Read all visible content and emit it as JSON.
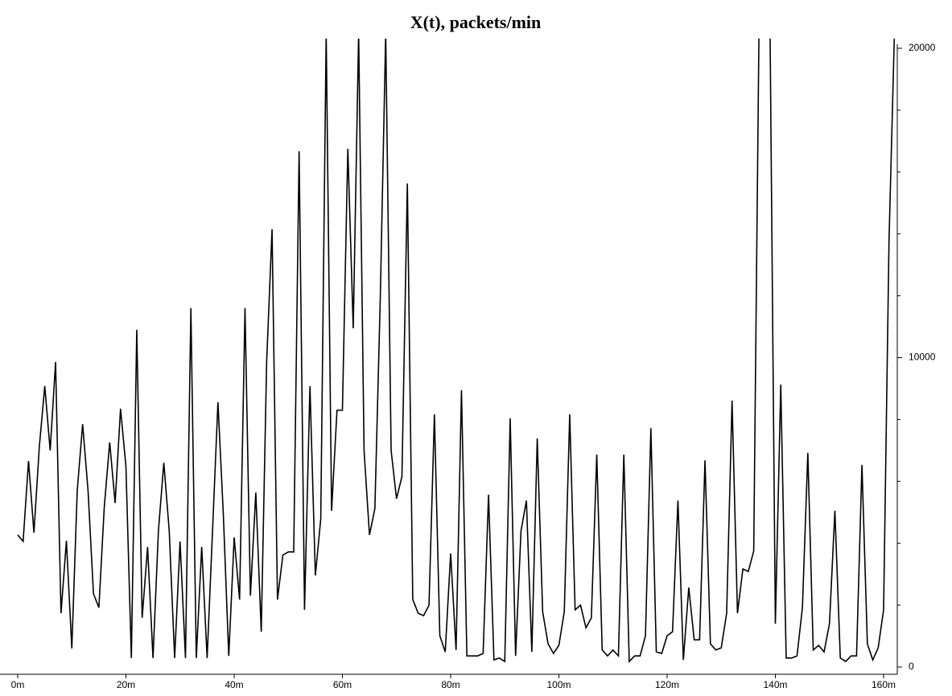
{
  "chart_data": {
    "type": "line",
    "title": "X(t), packets/min",
    "x": [
      0,
      1,
      2,
      3,
      4,
      5,
      6,
      7,
      8,
      9,
      10,
      11,
      12,
      13,
      14,
      15,
      16,
      17,
      18,
      19,
      20,
      21,
      22,
      23,
      24,
      25,
      26,
      27,
      28,
      29,
      30,
      31,
      32,
      33,
      34,
      35,
      36,
      37,
      38,
      39,
      40,
      41,
      42,
      43,
      44,
      45,
      46,
      47,
      48,
      49,
      50,
      51,
      52,
      53,
      54,
      55,
      56,
      57,
      58,
      59,
      60,
      61,
      62,
      63,
      64,
      65,
      66,
      67,
      68,
      69,
      70,
      71,
      72,
      73,
      74,
      75,
      76,
      77,
      78,
      79,
      80,
      81,
      82,
      83,
      84,
      85,
      86,
      87,
      88,
      89,
      90,
      91,
      92,
      93,
      94,
      95,
      96,
      97,
      98,
      99,
      100,
      101,
      102,
      103,
      104,
      105,
      106,
      107,
      108,
      109,
      110,
      111,
      112,
      113,
      114,
      115,
      116,
      117,
      118,
      119,
      120,
      121,
      122,
      123,
      124,
      125,
      126,
      127,
      128,
      129,
      130,
      131,
      132,
      133,
      134,
      135,
      136,
      137,
      138,
      139,
      140,
      141,
      142,
      143,
      144,
      145,
      146,
      147,
      148,
      149,
      150,
      151,
      152,
      153,
      154,
      155,
      156,
      157,
      158,
      159,
      160,
      161,
      162
    ],
    "series": [
      {
        "name": "X(t)",
        "color": "#000000",
        "values": [
          4270,
          4060,
          6660,
          4340,
          7130,
          9080,
          7000,
          9860,
          1740,
          4080,
          600,
          5700,
          7850,
          5700,
          2370,
          1920,
          5180,
          7260,
          5300,
          8350,
          6480,
          290,
          10900,
          1590,
          3880,
          290,
          4400,
          6600,
          4400,
          290,
          4060,
          290,
          11600,
          290,
          3880,
          290,
          4400,
          8560,
          4920,
          360,
          4190,
          2180,
          11600,
          2310,
          5640,
          1140,
          9860,
          14150,
          2180,
          3620,
          3720,
          3720,
          16670,
          1850,
          9080,
          2960,
          4790,
          20500,
          5050,
          8300,
          8300,
          16750,
          10950,
          20500,
          7000,
          4270,
          5120,
          11940,
          20500,
          7000,
          5440,
          6160,
          15630,
          2180,
          1740,
          1660,
          2000,
          8170,
          1010,
          490,
          3670,
          550,
          8950,
          360,
          360,
          360,
          440,
          5570,
          230,
          290,
          180,
          8040,
          360,
          4400,
          5380,
          490,
          7390,
          1790,
          750,
          440,
          700,
          1790,
          8170,
          1850,
          2000,
          1270,
          1590,
          6870,
          550,
          360,
          550,
          360,
          6870,
          180,
          360,
          360,
          1010,
          7720,
          490,
          440,
          1010,
          1140,
          5380,
          230,
          2570,
          880,
          880,
          6680,
          750,
          550,
          620,
          1740,
          8610,
          1740,
          3170,
          3090,
          3750,
          21000,
          24000,
          21000,
          1400,
          9130,
          290,
          290,
          360,
          1920,
          6920,
          550,
          700,
          490,
          1400,
          5050,
          290,
          180,
          360,
          360,
          6530,
          750,
          230,
          620,
          1850,
          13760,
          20500
        ]
      }
    ],
    "xlim": [
      0,
      163
    ],
    "xticks": [
      {
        "value": 0,
        "label": "0m"
      },
      {
        "value": 20,
        "label": "20m"
      },
      {
        "value": 40,
        "label": "40m"
      },
      {
        "value": 60,
        "label": "60m"
      },
      {
        "value": 80,
        "label": "80m"
      },
      {
        "value": 100,
        "label": "100m"
      },
      {
        "value": 120,
        "label": "120m"
      },
      {
        "value": 140,
        "label": "140m"
      },
      {
        "value": 160,
        "label": "160m"
      }
    ],
    "ylim": [
      0,
      20000
    ],
    "yticks": [
      0,
      10000,
      20000
    ],
    "yminorticks": [
      2000,
      4000,
      6000,
      8000,
      12000,
      14000,
      16000,
      18000
    ],
    "yaxis_side": "right"
  }
}
